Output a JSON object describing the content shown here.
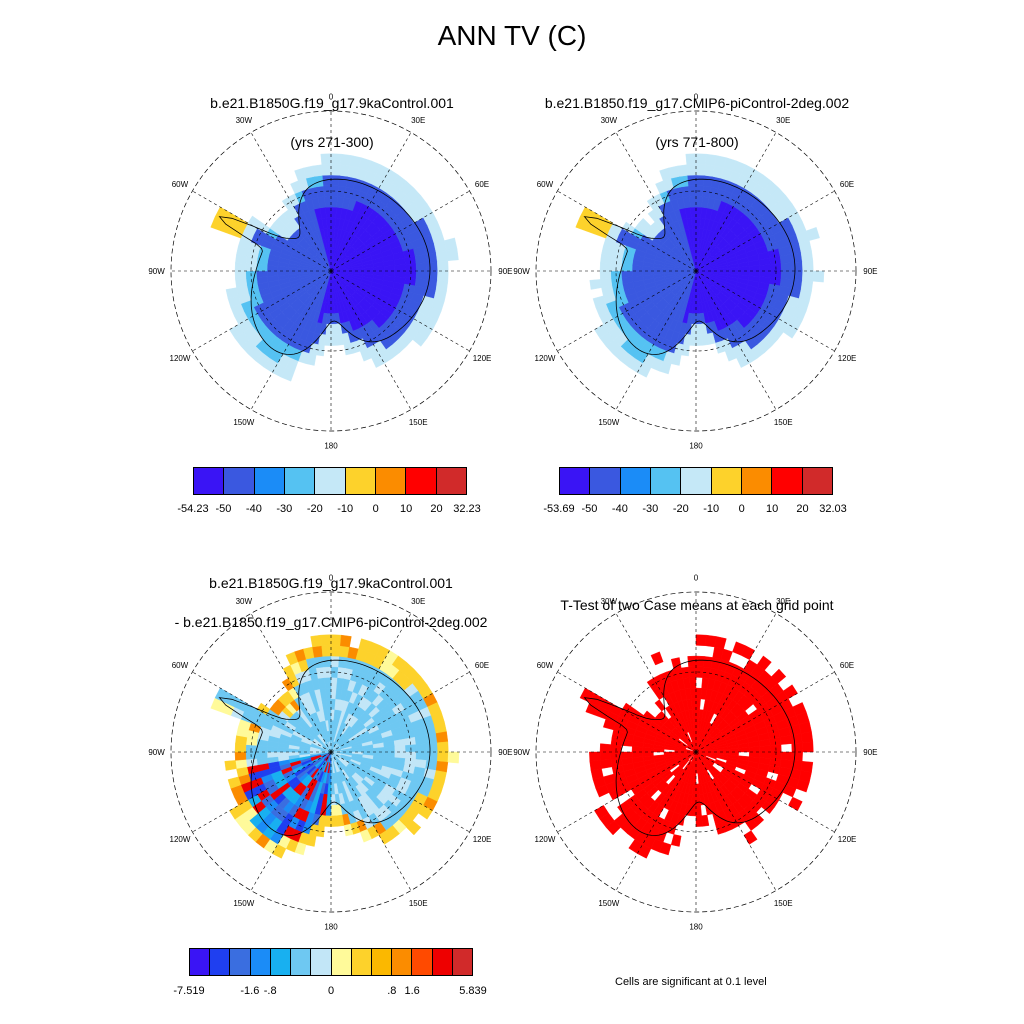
{
  "title": "ANN TV (C)",
  "panels": [
    {
      "id": "case1",
      "title_lines": [
        "b.e21.B1850G.f19_g17.9kaControl.001",
        "(yrs 271-300)"
      ]
    },
    {
      "id": "case2",
      "title_lines": [
        "b.e21.B1850.f19_g17.CMIP6-piControl-2deg.002",
        "(yrs 771-800)"
      ]
    },
    {
      "id": "diff",
      "title_lines": [
        "b.e21.B1850G.f19_g17.9kaControl.001",
        "- b.e21.B1850.f19_g17.CMIP6-piControl-2deg.002"
      ]
    },
    {
      "id": "ttest",
      "title_lines": [
        "T-Test of two Case means at each grid point"
      ]
    }
  ],
  "map_labels": {
    "lon": [
      "0",
      "30E",
      "60E",
      "90E",
      "120E",
      "150E",
      "180",
      "150W",
      "120W",
      "90W",
      "60W",
      "30W"
    ]
  },
  "colorbars": {
    "case1": {
      "colors": [
        "#3a14f5",
        "#3a58e0",
        "#1b8cf7",
        "#55c2f2",
        "#c5e8f7",
        "#fdd22b",
        "#fb8c00",
        "#ff0000",
        "#d12a2a"
      ],
      "labels": [
        "-54.23",
        "-50",
        "-40",
        "-30",
        "-20",
        "-10",
        "0",
        "10",
        "20",
        "32.23"
      ]
    },
    "case2": {
      "colors": [
        "#3a14f5",
        "#3a58e0",
        "#1b8cf7",
        "#55c2f2",
        "#c5e8f7",
        "#fdd22b",
        "#fb8c00",
        "#ff0000",
        "#d12a2a"
      ],
      "labels": [
        "-53.69",
        "-50",
        "-40",
        "-30",
        "-20",
        "-10",
        "0",
        "10",
        "20",
        "32.03"
      ]
    },
    "diff": {
      "colors": [
        "#3a14f5",
        "#1f3ff0",
        "#3a6ee0",
        "#1b8cf7",
        "#18b0f0",
        "#6ec8f2",
        "#c2e6f7",
        "#fffa9a",
        "#fdd22b",
        "#fbb800",
        "#fb8c00",
        "#ff4a00",
        "#ee0000",
        "#d12a2a"
      ],
      "labels": [
        "-7.519",
        "-1.6",
        "-.8",
        "0",
        ".8",
        "1.6",
        "5.839"
      ]
    }
  },
  "ttest_note": "Cells are significant at 0.1 level"
}
